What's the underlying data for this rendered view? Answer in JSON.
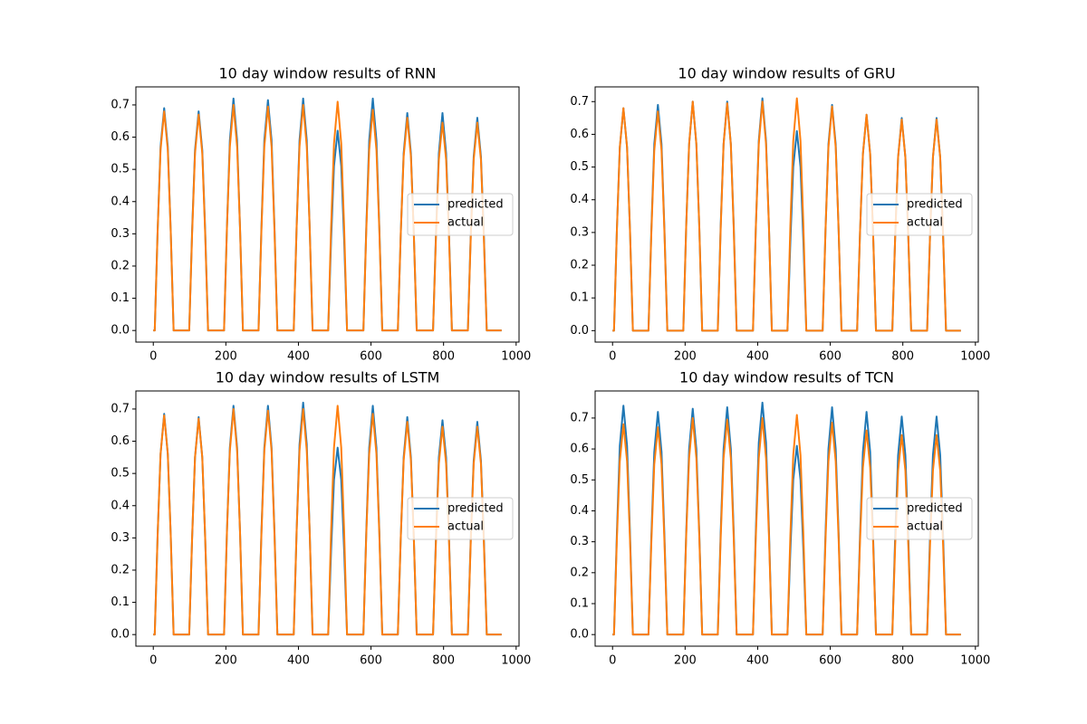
{
  "chart_data": [
    {
      "type": "line",
      "title": "10 day window results of RNN",
      "legend": "center right",
      "x": [
        0,
        4,
        12,
        20,
        30,
        40,
        48,
        56,
        99,
        107,
        115,
        125,
        135,
        143,
        151,
        195,
        203,
        211,
        221,
        231,
        239,
        247,
        290,
        298,
        306,
        316,
        326,
        334,
        342,
        387,
        395,
        403,
        413,
        423,
        431,
        439,
        482,
        490,
        498,
        508,
        518,
        526,
        534,
        579,
        587,
        595,
        605,
        615,
        623,
        631,
        674,
        682,
        690,
        700,
        710,
        718,
        726,
        771,
        779,
        787,
        797,
        807,
        815,
        823,
        867,
        875,
        883,
        893,
        903,
        911,
        919,
        960
      ],
      "xlim": [
        -48,
        1008
      ],
      "xticks": [
        0,
        200,
        400,
        600,
        800,
        1000
      ],
      "ylim": [
        -0.036,
        0.756
      ],
      "yticks": [
        {
          "value": 0,
          "label": "0.0"
        },
        {
          "value": 0.1,
          "label": "0.1"
        },
        {
          "value": 0.2,
          "label": "0.2"
        },
        {
          "value": 0.3,
          "label": "0.3"
        },
        {
          "value": 0.4,
          "label": "0.4"
        },
        {
          "value": 0.5,
          "label": "0.5"
        },
        {
          "value": 0.6,
          "label": "0.6"
        },
        {
          "value": 0.7,
          "label": "0.7"
        }
      ],
      "series": [
        {
          "name": "predicted",
          "color": "#1f77b4",
          "values": [
            0,
            0,
            0.31,
            0.57,
            0.69,
            0.57,
            0.31,
            0,
            0,
            0.31,
            0.56,
            0.68,
            0.56,
            0.31,
            0,
            0,
            0.32,
            0.59,
            0.72,
            0.59,
            0.32,
            0,
            0,
            0.32,
            0.59,
            0.715,
            0.59,
            0.32,
            0,
            0,
            0.32,
            0.59,
            0.72,
            0.59,
            0.32,
            0,
            0,
            0.28,
            0.51,
            0.62,
            0.51,
            0.28,
            0,
            0,
            0.32,
            0.59,
            0.72,
            0.59,
            0.32,
            0,
            0,
            0.3,
            0.55,
            0.675,
            0.55,
            0.3,
            0,
            0,
            0.3,
            0.55,
            0.675,
            0.55,
            0.3,
            0,
            0,
            0.3,
            0.54,
            0.66,
            0.54,
            0.3,
            0,
            0
          ]
        },
        {
          "name": "actual",
          "color": "#ff7f0e",
          "values": [
            0,
            0,
            0.31,
            0.56,
            0.68,
            0.56,
            0.31,
            0,
            0,
            0.3,
            0.55,
            0.67,
            0.55,
            0.3,
            0,
            0,
            0.32,
            0.57,
            0.7,
            0.57,
            0.32,
            0,
            0,
            0.31,
            0.57,
            0.695,
            0.57,
            0.31,
            0,
            0,
            0.32,
            0.57,
            0.7,
            0.57,
            0.32,
            0,
            0,
            0.32,
            0.58,
            0.71,
            0.58,
            0.32,
            0,
            0,
            0.31,
            0.56,
            0.685,
            0.56,
            0.31,
            0,
            0,
            0.3,
            0.54,
            0.66,
            0.54,
            0.3,
            0,
            0,
            0.29,
            0.53,
            0.645,
            0.53,
            0.29,
            0,
            0,
            0.29,
            0.53,
            0.645,
            0.53,
            0.29,
            0,
            0
          ]
        }
      ]
    },
    {
      "type": "line",
      "title": "10 day window results of GRU",
      "legend": "center right",
      "x": [
        0,
        4,
        12,
        20,
        30,
        40,
        48,
        56,
        99,
        107,
        115,
        125,
        135,
        143,
        151,
        195,
        203,
        211,
        221,
        231,
        239,
        247,
        290,
        298,
        306,
        316,
        326,
        334,
        342,
        387,
        395,
        403,
        413,
        423,
        431,
        439,
        482,
        490,
        498,
        508,
        518,
        526,
        534,
        579,
        587,
        595,
        605,
        615,
        623,
        631,
        674,
        682,
        690,
        700,
        710,
        718,
        726,
        771,
        779,
        787,
        797,
        807,
        815,
        823,
        867,
        875,
        883,
        893,
        903,
        911,
        919,
        960
      ],
      "xlim": [
        -48,
        1008
      ],
      "xticks": [
        0,
        200,
        400,
        600,
        800,
        1000
      ],
      "ylim": [
        -0.035,
        0.745
      ],
      "yticks": [
        {
          "value": 0,
          "label": "0.0"
        },
        {
          "value": 0.1,
          "label": "0.1"
        },
        {
          "value": 0.2,
          "label": "0.2"
        },
        {
          "value": 0.3,
          "label": "0.3"
        },
        {
          "value": 0.4,
          "label": "0.4"
        },
        {
          "value": 0.5,
          "label": "0.5"
        },
        {
          "value": 0.6,
          "label": "0.6"
        },
        {
          "value": 0.7,
          "label": "0.7"
        }
      ],
      "series": [
        {
          "name": "predicted",
          "color": "#1f77b4",
          "values": [
            0,
            0,
            0.31,
            0.56,
            0.68,
            0.56,
            0.31,
            0,
            0,
            0.31,
            0.57,
            0.69,
            0.57,
            0.31,
            0,
            0,
            0.32,
            0.57,
            0.7,
            0.57,
            0.32,
            0,
            0,
            0.32,
            0.57,
            0.7,
            0.57,
            0.32,
            0,
            0,
            0.32,
            0.58,
            0.71,
            0.58,
            0.32,
            0,
            0,
            0.27,
            0.5,
            0.61,
            0.5,
            0.27,
            0,
            0,
            0.31,
            0.57,
            0.69,
            0.57,
            0.31,
            0,
            0,
            0.3,
            0.54,
            0.66,
            0.54,
            0.3,
            0,
            0,
            0.29,
            0.53,
            0.65,
            0.53,
            0.29,
            0,
            0,
            0.29,
            0.53,
            0.65,
            0.53,
            0.29,
            0,
            0
          ]
        },
        {
          "name": "actual",
          "color": "#ff7f0e",
          "values": [
            0,
            0,
            0.31,
            0.56,
            0.68,
            0.56,
            0.31,
            0,
            0,
            0.3,
            0.55,
            0.67,
            0.55,
            0.3,
            0,
            0,
            0.32,
            0.57,
            0.7,
            0.57,
            0.32,
            0,
            0,
            0.31,
            0.57,
            0.695,
            0.57,
            0.31,
            0,
            0,
            0.32,
            0.57,
            0.7,
            0.57,
            0.32,
            0,
            0,
            0.32,
            0.58,
            0.71,
            0.58,
            0.32,
            0,
            0,
            0.31,
            0.56,
            0.685,
            0.56,
            0.31,
            0,
            0,
            0.3,
            0.54,
            0.66,
            0.54,
            0.3,
            0,
            0,
            0.29,
            0.53,
            0.645,
            0.53,
            0.29,
            0,
            0,
            0.29,
            0.53,
            0.645,
            0.53,
            0.29,
            0,
            0
          ]
        }
      ]
    },
    {
      "type": "line",
      "title": "10 day window results of LSTM",
      "legend": "center right",
      "x": [
        0,
        4,
        12,
        20,
        30,
        40,
        48,
        56,
        99,
        107,
        115,
        125,
        135,
        143,
        151,
        195,
        203,
        211,
        221,
        231,
        239,
        247,
        290,
        298,
        306,
        316,
        326,
        334,
        342,
        387,
        395,
        403,
        413,
        423,
        431,
        439,
        482,
        490,
        498,
        508,
        518,
        526,
        534,
        579,
        587,
        595,
        605,
        615,
        623,
        631,
        674,
        682,
        690,
        700,
        710,
        718,
        726,
        771,
        779,
        787,
        797,
        807,
        815,
        823,
        867,
        875,
        883,
        893,
        903,
        911,
        919,
        960
      ],
      "xlim": [
        -48,
        1008
      ],
      "xticks": [
        0,
        200,
        400,
        600,
        800,
        1000
      ],
      "ylim": [
        -0.036,
        0.756
      ],
      "yticks": [
        {
          "value": 0,
          "label": "0.0"
        },
        {
          "value": 0.1,
          "label": "0.1"
        },
        {
          "value": 0.2,
          "label": "0.2"
        },
        {
          "value": 0.3,
          "label": "0.3"
        },
        {
          "value": 0.4,
          "label": "0.4"
        },
        {
          "value": 0.5,
          "label": "0.5"
        },
        {
          "value": 0.6,
          "label": "0.6"
        },
        {
          "value": 0.7,
          "label": "0.7"
        }
      ],
      "series": [
        {
          "name": "predicted",
          "color": "#1f77b4",
          "values": [
            0,
            0,
            0.31,
            0.56,
            0.685,
            0.56,
            0.31,
            0,
            0,
            0.3,
            0.55,
            0.675,
            0.55,
            0.3,
            0,
            0,
            0.32,
            0.58,
            0.71,
            0.58,
            0.32,
            0,
            0,
            0.32,
            0.58,
            0.71,
            0.58,
            0.32,
            0,
            0,
            0.32,
            0.59,
            0.72,
            0.59,
            0.32,
            0,
            0,
            0.26,
            0.48,
            0.58,
            0.48,
            0.26,
            0,
            0,
            0.32,
            0.58,
            0.71,
            0.58,
            0.32,
            0,
            0,
            0.3,
            0.55,
            0.675,
            0.55,
            0.3,
            0,
            0,
            0.3,
            0.55,
            0.665,
            0.55,
            0.3,
            0,
            0,
            0.3,
            0.54,
            0.66,
            0.54,
            0.3,
            0,
            0
          ]
        },
        {
          "name": "actual",
          "color": "#ff7f0e",
          "values": [
            0,
            0,
            0.31,
            0.56,
            0.68,
            0.56,
            0.31,
            0,
            0,
            0.3,
            0.55,
            0.67,
            0.55,
            0.3,
            0,
            0,
            0.32,
            0.57,
            0.7,
            0.57,
            0.32,
            0,
            0,
            0.31,
            0.57,
            0.695,
            0.57,
            0.31,
            0,
            0,
            0.32,
            0.57,
            0.7,
            0.57,
            0.32,
            0,
            0,
            0.32,
            0.58,
            0.71,
            0.58,
            0.32,
            0,
            0,
            0.31,
            0.56,
            0.685,
            0.56,
            0.31,
            0,
            0,
            0.3,
            0.54,
            0.66,
            0.54,
            0.3,
            0,
            0,
            0.29,
            0.53,
            0.645,
            0.53,
            0.29,
            0,
            0,
            0.29,
            0.53,
            0.645,
            0.53,
            0.29,
            0,
            0
          ]
        }
      ]
    },
    {
      "type": "line",
      "title": "10 day window results of TCN",
      "legend": "center right",
      "x": [
        0,
        4,
        12,
        20,
        30,
        40,
        48,
        56,
        99,
        107,
        115,
        125,
        135,
        143,
        151,
        195,
        203,
        211,
        221,
        231,
        239,
        247,
        290,
        298,
        306,
        316,
        326,
        334,
        342,
        387,
        395,
        403,
        413,
        423,
        431,
        439,
        482,
        490,
        498,
        508,
        518,
        526,
        534,
        579,
        587,
        595,
        605,
        615,
        623,
        631,
        674,
        682,
        690,
        700,
        710,
        718,
        726,
        771,
        779,
        787,
        797,
        807,
        815,
        823,
        867,
        875,
        883,
        893,
        903,
        911,
        919,
        960
      ],
      "xlim": [
        -48,
        1008
      ],
      "xticks": [
        0,
        200,
        400,
        600,
        800,
        1000
      ],
      "ylim": [
        -0.0375,
        0.7875
      ],
      "yticks": [
        {
          "value": 0,
          "label": "0.0"
        },
        {
          "value": 0.1,
          "label": "0.1"
        },
        {
          "value": 0.2,
          "label": "0.2"
        },
        {
          "value": 0.3,
          "label": "0.3"
        },
        {
          "value": 0.4,
          "label": "0.4"
        },
        {
          "value": 0.5,
          "label": "0.5"
        },
        {
          "value": 0.6,
          "label": "0.6"
        },
        {
          "value": 0.7,
          "label": "0.7"
        }
      ],
      "series": [
        {
          "name": "predicted",
          "color": "#1f77b4",
          "values": [
            0,
            0,
            0.33,
            0.61,
            0.74,
            0.61,
            0.33,
            0,
            0,
            0.32,
            0.59,
            0.72,
            0.59,
            0.32,
            0,
            0,
            0.33,
            0.6,
            0.73,
            0.6,
            0.33,
            0,
            0,
            0.33,
            0.6,
            0.735,
            0.6,
            0.33,
            0,
            0,
            0.34,
            0.62,
            0.75,
            0.62,
            0.34,
            0,
            0,
            0.27,
            0.5,
            0.61,
            0.5,
            0.27,
            0,
            0,
            0.33,
            0.6,
            0.735,
            0.6,
            0.33,
            0,
            0,
            0.32,
            0.59,
            0.72,
            0.59,
            0.32,
            0,
            0,
            0.32,
            0.58,
            0.705,
            0.58,
            0.32,
            0,
            0,
            0.32,
            0.58,
            0.705,
            0.58,
            0.32,
            0,
            0
          ]
        },
        {
          "name": "actual",
          "color": "#ff7f0e",
          "values": [
            0,
            0,
            0.31,
            0.56,
            0.68,
            0.56,
            0.31,
            0,
            0,
            0.3,
            0.55,
            0.67,
            0.55,
            0.3,
            0,
            0,
            0.32,
            0.57,
            0.7,
            0.57,
            0.32,
            0,
            0,
            0.31,
            0.57,
            0.695,
            0.57,
            0.31,
            0,
            0,
            0.32,
            0.57,
            0.7,
            0.57,
            0.32,
            0,
            0,
            0.32,
            0.58,
            0.71,
            0.58,
            0.32,
            0,
            0,
            0.31,
            0.56,
            0.685,
            0.56,
            0.31,
            0,
            0,
            0.3,
            0.54,
            0.66,
            0.54,
            0.3,
            0,
            0,
            0.29,
            0.53,
            0.645,
            0.53,
            0.29,
            0,
            0,
            0.29,
            0.53,
            0.645,
            0.53,
            0.29,
            0,
            0
          ]
        }
      ]
    }
  ]
}
